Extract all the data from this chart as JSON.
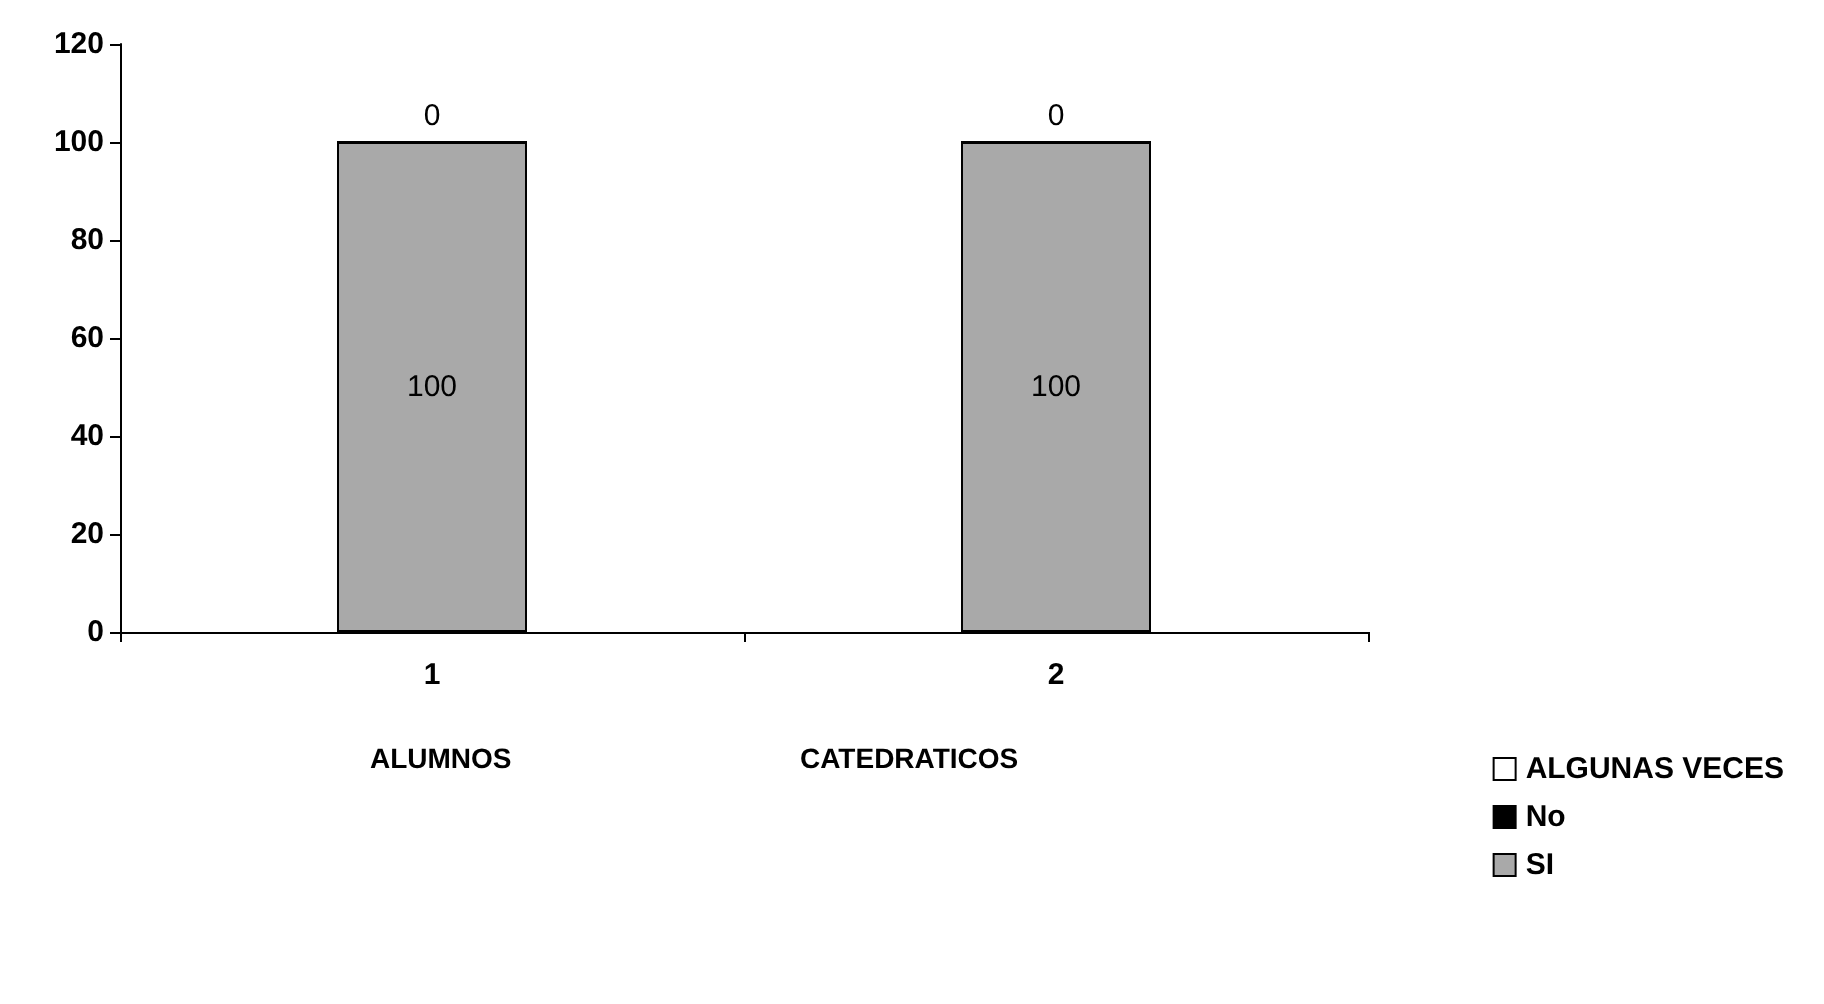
{
  "chart_data": {
    "type": "bar",
    "stacked": true,
    "categories": [
      "1",
      "2"
    ],
    "series": [
      {
        "name": "SI",
        "color": "#a9a9a9",
        "values": [
          100,
          100
        ],
        "value_labels": [
          "100",
          "100"
        ]
      },
      {
        "name": "No",
        "color": "#000000",
        "values": [
          0,
          0
        ],
        "value_labels": [
          null,
          null
        ]
      },
      {
        "name": "ALGUNAS VECES",
        "color": "#ffffff",
        "values": [
          0,
          0
        ],
        "value_labels": [
          "0",
          "0"
        ]
      }
    ],
    "ylim": [
      0,
      120
    ],
    "yticks": [
      0,
      20,
      40,
      60,
      80,
      100,
      120
    ],
    "grid": false,
    "legend": "right",
    "annotations": [
      "ALUMNOS",
      "CATEDRATICOS"
    ]
  }
}
